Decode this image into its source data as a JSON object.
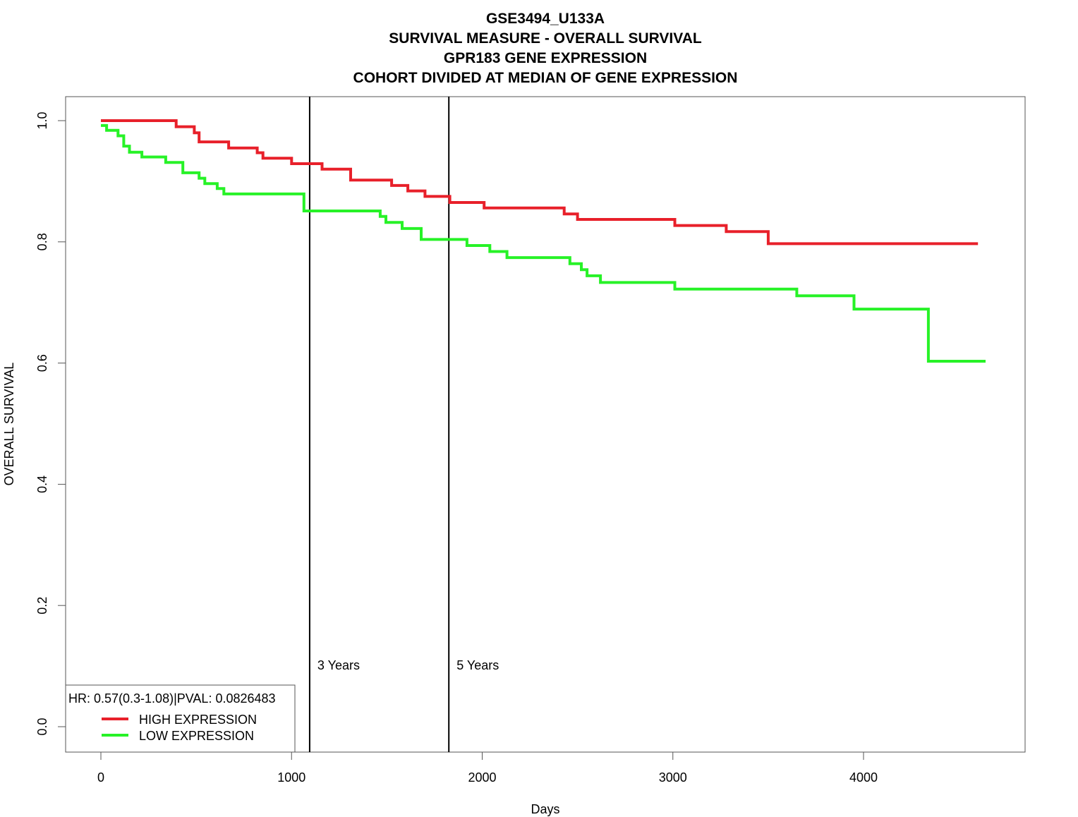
{
  "chart_data": {
    "type": "line",
    "title_lines": [
      "GSE3494_U133A",
      "SURVIVAL MEASURE -  OVERALL SURVIVAL",
      "GPR183  GENE EXPRESSION",
      "COHORT DIVIDED AT MEDIAN OF GENE EXPRESSION"
    ],
    "xlabel": "Days",
    "ylabel": "OVERALL SURVIVAL",
    "xlim": [
      0,
      4650
    ],
    "ylim": [
      0,
      1
    ],
    "x_ticks": [
      "0",
      "1000",
      "2000",
      "3000",
      "4000"
    ],
    "x_tick_values": [
      0,
      1000,
      2000,
      3000,
      4000
    ],
    "y_ticks": [
      "0.0",
      "0.2",
      "0.4",
      "0.6",
      "0.8",
      "1.0"
    ],
    "y_tick_values": [
      0,
      0.2,
      0.4,
      0.6,
      0.8,
      1.0
    ],
    "grid": false,
    "reference_lines": [
      {
        "x": 1095,
        "label": "3 Years"
      },
      {
        "x": 1825,
        "label": "5 Years"
      }
    ],
    "legend": {
      "placement": "bottom-left",
      "header": "HR: 0.57(0.3-1.08)|PVAL: 0.0826483",
      "entries": [
        {
          "label": "HIGH EXPRESSION",
          "color": "#e8202a"
        },
        {
          "label": "LOW EXPRESSION",
          "color": "#27f227"
        }
      ]
    },
    "series": [
      {
        "color": "#e8202a",
        "steps": [
          [
            0,
            1.0
          ],
          [
            395,
            0.99
          ],
          [
            490,
            0.98
          ],
          [
            515,
            0.965
          ],
          [
            670,
            0.955
          ],
          [
            820,
            0.947
          ],
          [
            850,
            0.938
          ],
          [
            1000,
            0.929
          ],
          [
            1160,
            0.92
          ],
          [
            1310,
            0.902
          ],
          [
            1525,
            0.893
          ],
          [
            1610,
            0.884
          ],
          [
            1700,
            0.875
          ],
          [
            1830,
            0.865
          ],
          [
            2010,
            0.856
          ],
          [
            2430,
            0.846
          ],
          [
            2500,
            0.837
          ],
          [
            3010,
            0.827
          ],
          [
            3280,
            0.817
          ],
          [
            3500,
            0.797
          ],
          [
            4600,
            0.797
          ]
        ]
      },
      {
        "color": "#27f227",
        "steps": [
          [
            0,
            0.992
          ],
          [
            30,
            0.984
          ],
          [
            90,
            0.975
          ],
          [
            120,
            0.958
          ],
          [
            150,
            0.948
          ],
          [
            215,
            0.94
          ],
          [
            340,
            0.931
          ],
          [
            430,
            0.914
          ],
          [
            515,
            0.905
          ],
          [
            545,
            0.896
          ],
          [
            610,
            0.888
          ],
          [
            645,
            0.879
          ],
          [
            1065,
            0.851
          ],
          [
            1465,
            0.842
          ],
          [
            1495,
            0.832
          ],
          [
            1580,
            0.822
          ],
          [
            1680,
            0.804
          ],
          [
            1920,
            0.794
          ],
          [
            2040,
            0.784
          ],
          [
            2130,
            0.774
          ],
          [
            2460,
            0.764
          ],
          [
            2520,
            0.754
          ],
          [
            2550,
            0.744
          ],
          [
            2620,
            0.733
          ],
          [
            3010,
            0.722
          ],
          [
            3650,
            0.711
          ],
          [
            3950,
            0.689
          ],
          [
            4340,
            0.603
          ],
          [
            4640,
            0.603
          ]
        ]
      }
    ]
  }
}
